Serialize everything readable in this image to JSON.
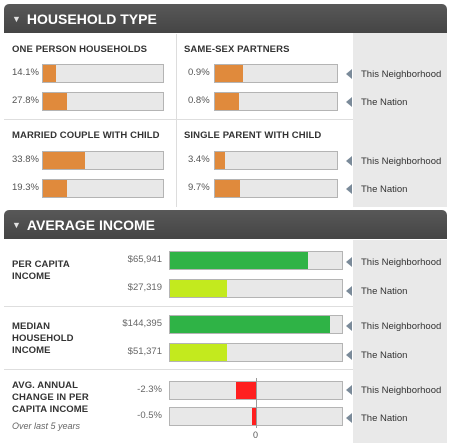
{
  "legend": {
    "neighborhood": "This Neighborhood",
    "nation": "The Nation"
  },
  "colors": {
    "orange": "#e08a3c",
    "green": "#2fb346",
    "lime": "#c3ea1e",
    "red": "#ff1f1f",
    "header": "#4d4d4d"
  },
  "household": {
    "title": "HOUSEHOLD TYPE",
    "one_person": {
      "label": "ONE PERSON HOUSEHOLDS",
      "neighborhood": "14.1%",
      "nation": "27.8%"
    },
    "same_sex": {
      "label": "SAME-SEX PARTNERS",
      "neighborhood": "0.9%",
      "nation": "0.8%"
    },
    "married": {
      "label": "MARRIED COUPLE WITH CHILD",
      "neighborhood": "33.8%",
      "nation": "19.3%"
    },
    "single_parent": {
      "label": "SINGLE PARENT WITH CHILD",
      "neighborhood": "3.4%",
      "nation": "9.7%"
    }
  },
  "income": {
    "title": "AVERAGE INCOME",
    "per_capita": {
      "label_line1": "PER CAPITA",
      "label_line2": "INCOME",
      "neighborhood": "$65,941",
      "nation": "$27,319",
      "neighborhood_fraction": 0.8,
      "nation_fraction": 0.33
    },
    "median": {
      "label_line1": "MEDIAN",
      "label_line2": "HOUSEHOLD",
      "label_line3": "INCOME",
      "neighborhood": "$144,395",
      "nation": "$51,371",
      "neighborhood_fraction": 0.93,
      "nation_fraction": 0.33
    },
    "change": {
      "label_line1": "AVG. ANNUAL",
      "label_line2": "CHANGE IN PER",
      "label_line3": "CAPITA INCOME",
      "sub": "Over last 5 years",
      "neighborhood": "-2.3%",
      "nation": "-0.5%",
      "zero": "0"
    }
  }
}
